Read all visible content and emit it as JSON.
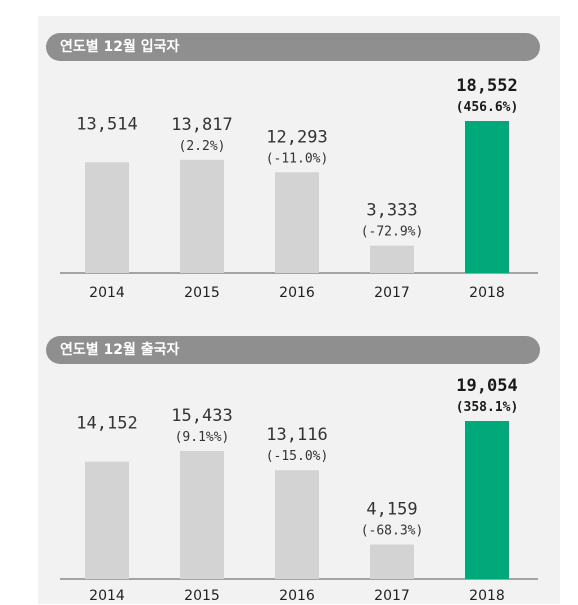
{
  "chart_data": [
    {
      "type": "bar",
      "title": "연도별 12월 입국자",
      "categories": [
        "2014",
        "2015",
        "2016",
        "2017",
        "2018"
      ],
      "values": [
        13514,
        13817,
        12293,
        3333,
        18552
      ],
      "value_labels": [
        "13,514",
        "13,817",
        "12,293",
        "3,333",
        "18,552"
      ],
      "change_labels": [
        "",
        "(2.2%)",
        "(-11.0%)",
        "(-72.9%)",
        "(456.6%)"
      ],
      "highlight_index": 4,
      "bar_color": "#d3d3d3",
      "highlight_color": "#00a87a",
      "grid": false
    },
    {
      "type": "bar",
      "title": "연도별 12월 출국자",
      "categories": [
        "2014",
        "2015",
        "2016",
        "2017",
        "2018"
      ],
      "values": [
        14152,
        15433,
        13116,
        4159,
        19054
      ],
      "value_labels": [
        "14,152",
        "15,433",
        "13,116",
        "4,159",
        "19,054"
      ],
      "change_labels": [
        "",
        "(9.1%%)",
        "(-15.0%)",
        "(-68.3%)",
        "(358.1%)"
      ],
      "highlight_index": 4,
      "bar_color": "#d3d3d3",
      "highlight_color": "#00a87a",
      "grid": false
    }
  ]
}
